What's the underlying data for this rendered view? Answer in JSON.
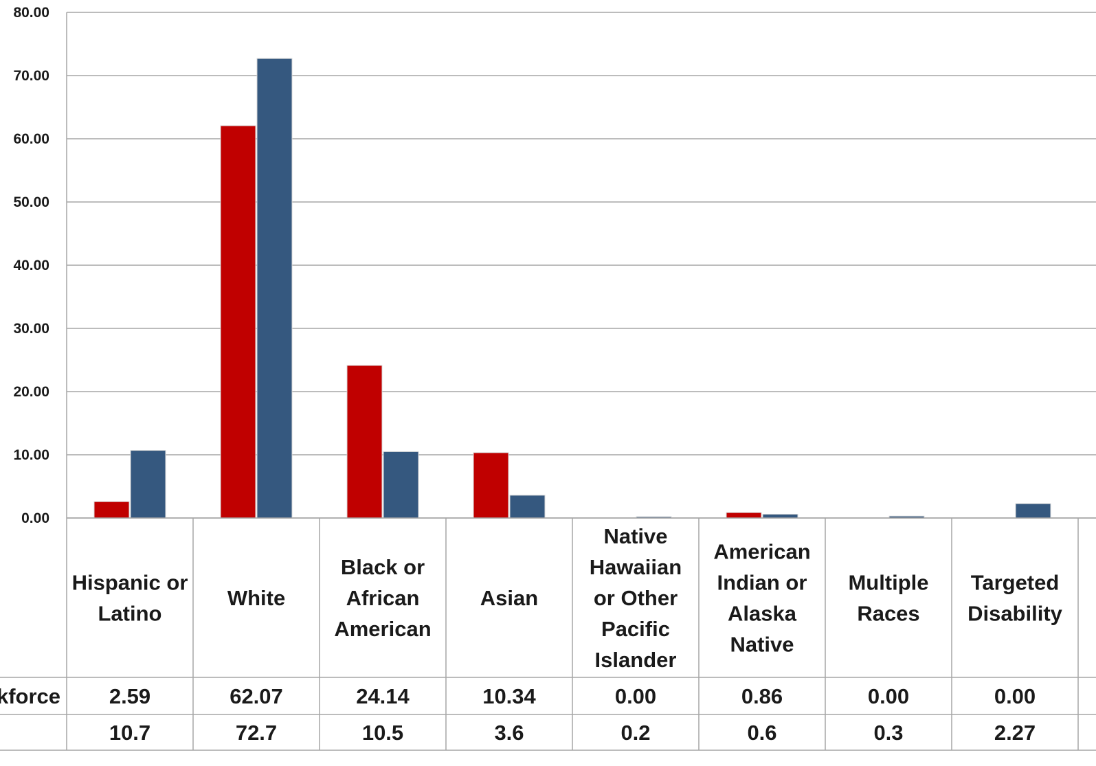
{
  "chart_data": {
    "type": "bar",
    "ylim": [
      0,
      80
    ],
    "yticks": [
      "0.00",
      "10.00",
      "20.00",
      "30.00",
      "40.00",
      "50.00",
      "60.00",
      "70.00",
      "80.00"
    ],
    "grid": true,
    "categories": [
      [
        "Hispanic or",
        "Latino"
      ],
      [
        "White"
      ],
      [
        "Black or",
        "African",
        "American"
      ],
      [
        "Asian"
      ],
      [
        "Native",
        "Hawaiian",
        "or Other",
        "Pacific",
        "Islander"
      ],
      [
        "American",
        "Indian or",
        "Alaska",
        "Native"
      ],
      [
        "Multiple",
        "Races"
      ],
      [
        "Targeted",
        "Disability"
      ]
    ],
    "series": [
      {
        "row_label": "kforce",
        "color": "#c00000",
        "values": [
          2.59,
          62.07,
          24.14,
          10.34,
          0.0,
          0.86,
          0.0,
          0.0
        ],
        "display": [
          "2.59",
          "62.07",
          "24.14",
          "10.34",
          "0.00",
          "0.86",
          "0.00",
          "0.00"
        ]
      },
      {
        "row_label": "",
        "color": "#35587f",
        "values": [
          10.7,
          72.7,
          10.5,
          3.6,
          0.2,
          0.6,
          0.3,
          2.27
        ],
        "display": [
          "10.7",
          "72.7",
          "10.5",
          "3.6",
          "0.2",
          "0.6",
          "0.3",
          "2.27"
        ]
      }
    ]
  }
}
